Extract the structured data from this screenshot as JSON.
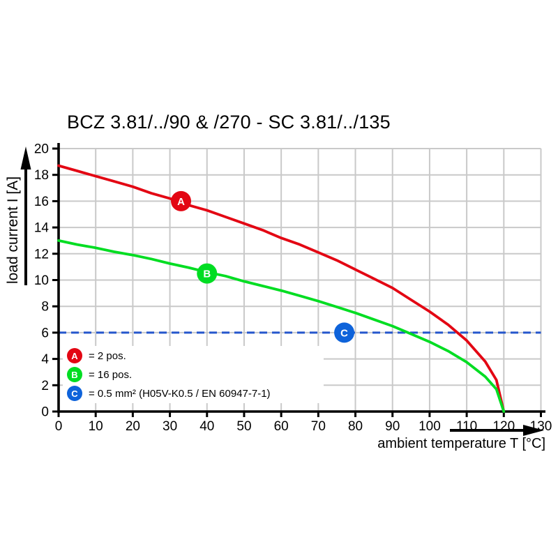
{
  "title": "BCZ 3.81/../90 & /270 - SC 3.81/../135",
  "colors": {
    "red": "#e30613",
    "green": "#00dd22",
    "blue_dash": "#2456cc",
    "blue_marker": "#0e63da",
    "grid": "#c9c9c9",
    "axis": "#000000"
  },
  "chart_data": {
    "type": "line",
    "title": "BCZ 3.81/../90 & /270 - SC 3.81/../135",
    "xlabel": "ambient temperature T [°C]",
    "ylabel": "load current I [A]",
    "xlim": [
      0,
      130
    ],
    "ylim": [
      0,
      20
    ],
    "x_ticks": [
      0,
      10,
      20,
      30,
      40,
      50,
      60,
      70,
      80,
      90,
      100,
      110,
      120,
      130
    ],
    "y_ticks": [
      0,
      2,
      4,
      6,
      8,
      10,
      12,
      14,
      16,
      18,
      20
    ],
    "grid": true,
    "legend_position": "bottom-left-inside",
    "x": [
      0,
      5,
      10,
      15,
      20,
      25,
      30,
      35,
      40,
      45,
      50,
      55,
      60,
      65,
      70,
      75,
      80,
      85,
      90,
      95,
      100,
      105,
      110,
      115,
      118,
      120
    ],
    "series": [
      {
        "name": "A = 2 pos.",
        "color": "#e30613",
        "values": [
          18.7,
          18.3,
          17.9,
          17.5,
          17.1,
          16.6,
          16.2,
          15.7,
          15.3,
          14.8,
          14.3,
          13.8,
          13.2,
          12.7,
          12.1,
          11.5,
          10.8,
          10.1,
          9.4,
          8.5,
          7.6,
          6.6,
          5.4,
          3.8,
          2.4,
          0
        ]
      },
      {
        "name": "B = 16 pos.",
        "color": "#00dd22",
        "values": [
          13.0,
          12.7,
          12.45,
          12.15,
          11.9,
          11.6,
          11.25,
          10.95,
          10.6,
          10.3,
          9.9,
          9.55,
          9.2,
          8.8,
          8.4,
          7.95,
          7.5,
          7.0,
          6.5,
          5.9,
          5.3,
          4.6,
          3.75,
          2.65,
          1.7,
          0
        ]
      },
      {
        "name": "C = 0.5 mm² (H05V-K0.5 / EN 60947-7-1)",
        "type": "hline",
        "y": 6,
        "x_range": [
          0,
          130
        ],
        "color": "#2456cc",
        "dash": true
      }
    ],
    "markers": [
      {
        "label": "A",
        "x": 33,
        "y": 16.0,
        "color": "#e30613"
      },
      {
        "label": "B",
        "x": 40,
        "y": 10.5,
        "color": "#00dd22"
      },
      {
        "label": "C",
        "x": 77,
        "y": 6.0,
        "color": "#0e63da"
      }
    ]
  },
  "legend": {
    "items": [
      {
        "symbol": "A",
        "color": "#e30613",
        "label": "= 2 pos."
      },
      {
        "symbol": "B",
        "color": "#00dd22",
        "label": "= 16 pos."
      },
      {
        "symbol": "C",
        "color": "#0e63da",
        "label": "= 0.5 mm² (H05V-K0.5 / EN 60947-7-1)"
      }
    ]
  }
}
